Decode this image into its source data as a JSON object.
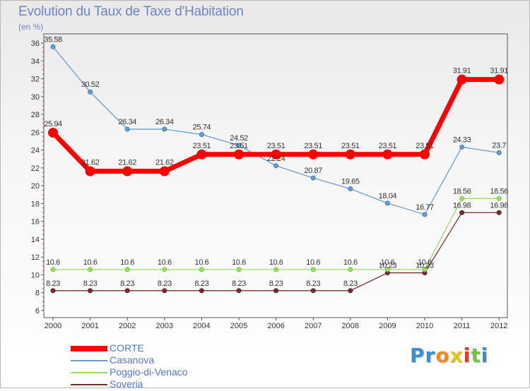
{
  "title": "Evolution du Taux de Taxe d'Habitation",
  "unit_label": "(en %)",
  "logo": {
    "letters": [
      "P",
      "r",
      "o",
      "x",
      "i",
      "t",
      "i"
    ],
    "colors": [
      "#3a8fd0",
      "#3a8fd0",
      "#f08a20",
      "#e8c21a",
      "#e23a2a",
      "#6cc83a",
      "#3a8fd0"
    ]
  },
  "chart_data": {
    "type": "line",
    "title": "Evolution du Taux de Taxe d'Habitation",
    "ylabel": "(en %)",
    "x": [
      "2000",
      "2001",
      "2002",
      "2003",
      "2004",
      "2005",
      "2006",
      "2007",
      "2008",
      "2009",
      "2010",
      "2011",
      "2012"
    ],
    "yticks": [
      "6",
      "8",
      "10",
      "12",
      "14",
      "16",
      "18",
      "20",
      "22",
      "24",
      "26",
      "28",
      "30",
      "32",
      "34",
      "36"
    ],
    "ylim": [
      6,
      36
    ],
    "grid": false,
    "legend_position": "bottom-left",
    "series": [
      {
        "name": "CORTE",
        "color": "#ff0000",
        "values": [
          25.94,
          21.62,
          21.62,
          21.62,
          23.51,
          23.51,
          23.51,
          23.51,
          23.51,
          23.51,
          23.51,
          31.91,
          31.91
        ],
        "labels": [
          "25.94",
          "21.62",
          "21.62",
          "21.62",
          "23.51",
          "23.51",
          "23.51",
          "23.51",
          "23.51",
          "23.51",
          "23.51",
          "31.91",
          "31.91"
        ]
      },
      {
        "name": "Casanova",
        "color": "#6a9fd0",
        "values": [
          35.58,
          30.52,
          26.34,
          26.34,
          25.74,
          24.52,
          22.24,
          20.87,
          19.65,
          18.04,
          16.77,
          24.33,
          23.7
        ],
        "labels": [
          "35.58",
          "30.52",
          "26.34",
          "26.34",
          "25.74",
          "24.52",
          "22.24",
          "20.87",
          "19.65",
          "18.04",
          "16.77",
          "24.33",
          "23.7"
        ]
      },
      {
        "name": "Poggio-di-Venaco",
        "color": "#99dd66",
        "values": [
          10.6,
          10.6,
          10.6,
          10.6,
          10.6,
          10.6,
          10.6,
          10.6,
          10.6,
          10.6,
          10.6,
          18.56,
          18.56
        ],
        "labels": [
          "10.6",
          "10.6",
          "10.6",
          "10.6",
          "10.6",
          "10.6",
          "10.6",
          "10.6",
          "10.6",
          "10.6",
          "10.6",
          "18.56",
          "18.56"
        ]
      },
      {
        "name": "Soveria",
        "color": "#7a2f2f",
        "values": [
          8.23,
          8.23,
          8.23,
          8.23,
          8.23,
          8.23,
          8.23,
          8.23,
          8.23,
          10.23,
          10.23,
          16.98,
          16.98
        ],
        "labels": [
          "8.23",
          "8.23",
          "8.23",
          "8.23",
          "8.23",
          "8.23",
          "8.23",
          "8.23",
          "8.23",
          "10.23",
          "10.23",
          "16.98",
          "16.98"
        ]
      }
    ]
  }
}
